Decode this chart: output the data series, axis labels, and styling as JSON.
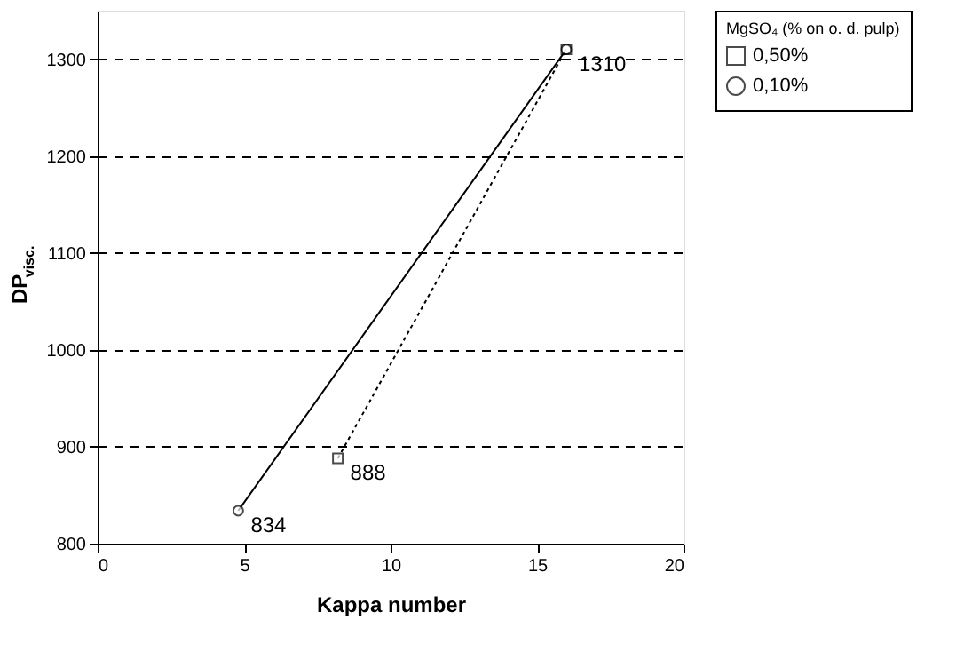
{
  "chart_data": {
    "type": "line",
    "xlabel": "Kappa number",
    "ylabel": "DP$_{visc.}$",
    "legend_title": "MgSO₄ (% on o. d. pulp)",
    "series": [
      {
        "name": "0,50%",
        "color": "#000000",
        "x": [
          8.2,
          16
        ],
        "values": [
          888,
          1310
        ],
        "marker": "square",
        "line_style": "dotted",
        "value_labels": [
          "888",
          "1310"
        ]
      },
      {
        "name": "0,10%",
        "color": "#000000",
        "x": [
          4.8,
          16
        ],
        "values": [
          834,
          1310
        ],
        "marker": "circle",
        "line_style": "solid",
        "value_labels": [
          "834",
          null
        ]
      }
    ],
    "xlim": [
      0,
      20
    ],
    "xticks": [
      0,
      5,
      10,
      15,
      20
    ],
    "ylim": [
      800,
      1350
    ],
    "yticks": [
      800,
      900,
      1000,
      1100,
      1200,
      1300
    ],
    "grid": "y",
    "legend": "right"
  }
}
